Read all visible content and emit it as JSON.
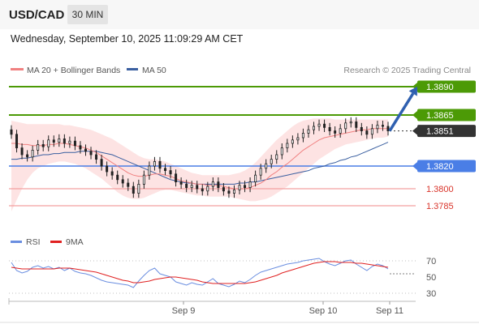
{
  "header": {
    "pair": "USD/CAD",
    "timeframe": "30 MIN"
  },
  "datetime": "Wednesday, September 10, 2025 11:09:29 AM CET",
  "legend": {
    "ma20": "MA 20 + Bollinger Bands",
    "ma50": "MA 50",
    "credit": "Research © 2025 Trading Central",
    "rsi": "RSI",
    "ma9": "9MA"
  },
  "colors": {
    "resistance": "#4c9a06",
    "pivot": "#4a7ee6",
    "support": "#f4a0a0",
    "support_label": "#d9342a",
    "current": "#333333",
    "arrow": "#2f60b0",
    "ma20": "#f08080",
    "ma50": "#3a5fa0",
    "band": "#fde3e3",
    "rsi": "#6a8ee0",
    "rsi_ma": "#e02020"
  },
  "chart_data": [
    {
      "type": "candlestick",
      "title": "USD/CAD 30 MIN",
      "x_tick_labels": [
        "Sep 9",
        "Sep 10",
        "Sep 11"
      ],
      "ylim": [
        1.377,
        1.3895
      ],
      "levels": [
        {
          "value": 1.389,
          "label": "1.3890",
          "kind": "resistance"
        },
        {
          "value": 1.3865,
          "label": "1.3865",
          "kind": "resistance"
        },
        {
          "value": 1.3851,
          "label": "1.3851",
          "kind": "current"
        },
        {
          "value": 1.382,
          "label": "1.3820",
          "kind": "pivot"
        },
        {
          "value": 1.38,
          "label": "1.3800",
          "kind": "support"
        },
        {
          "value": 1.3785,
          "label": "1.3785",
          "kind": "support"
        }
      ],
      "close": [
        1.3848,
        1.3836,
        1.383,
        1.3828,
        1.3834,
        1.3839,
        1.3837,
        1.3843,
        1.3841,
        1.3844,
        1.384,
        1.3842,
        1.3838,
        1.3835,
        1.3833,
        1.383,
        1.3826,
        1.382,
        1.3815,
        1.3812,
        1.3808,
        1.3805,
        1.3802,
        1.3796,
        1.3804,
        1.3812,
        1.382,
        1.3824,
        1.3818,
        1.3816,
        1.3813,
        1.3806,
        1.3804,
        1.3801,
        1.3803,
        1.38,
        1.3798,
        1.3802,
        1.3806,
        1.3801,
        1.3798,
        1.3796,
        1.3799,
        1.3803,
        1.3801,
        1.3806,
        1.3812,
        1.3818,
        1.3822,
        1.3826,
        1.383,
        1.3836,
        1.384,
        1.3843,
        1.3845,
        1.3849,
        1.3852,
        1.3855,
        1.3857,
        1.3854,
        1.3851,
        1.3849,
        1.3853,
        1.3858,
        1.3859,
        1.3854,
        1.3851,
        1.3848,
        1.3853,
        1.3856,
        1.3855,
        1.3851
      ],
      "ma20": [
        1.384,
        1.384,
        1.3839,
        1.3839,
        1.3838,
        1.3838,
        1.3838,
        1.3839,
        1.3839,
        1.384,
        1.384,
        1.3839,
        1.3838,
        1.3837,
        1.3836,
        1.3834,
        1.3832,
        1.3829,
        1.3826,
        1.3823,
        1.382,
        1.3817,
        1.3814,
        1.3812,
        1.3811,
        1.3811,
        1.3812,
        1.3813,
        1.3813,
        1.3812,
        1.3811,
        1.3809,
        1.3807,
        1.3806,
        1.3805,
        1.3804,
        1.3804,
        1.3803,
        1.3803,
        1.3803,
        1.3802,
        1.3801,
        1.38,
        1.38,
        1.38,
        1.3801,
        1.3803,
        1.3805,
        1.3808,
        1.3812,
        1.3815,
        1.3819,
        1.3822,
        1.3826,
        1.383,
        1.3834,
        1.3837,
        1.384,
        1.3843,
        1.3845,
        1.3846,
        1.3847,
        1.3848,
        1.3849,
        1.385,
        1.3851,
        1.3852,
        1.3852,
        1.3853,
        1.3853,
        1.3853,
        1.3853
      ],
      "ma50": [
        1.3826,
        1.3826,
        1.3827,
        1.3827,
        1.3828,
        1.3829,
        1.383,
        1.383,
        1.3831,
        1.3831,
        1.3832,
        1.3832,
        1.3832,
        1.3833,
        1.3833,
        1.3833,
        1.3833,
        1.3832,
        1.3831,
        1.383,
        1.3828,
        1.3826,
        1.3824,
        1.3822,
        1.382,
        1.3818,
        1.3816,
        1.3814,
        1.3812,
        1.381,
        1.3808,
        1.3807,
        1.3806,
        1.3805,
        1.3805,
        1.3804,
        1.3804,
        1.3804,
        1.3804,
        1.3804,
        1.3804,
        1.3804,
        1.3804,
        1.3805,
        1.3805,
        1.3806,
        1.3806,
        1.3807,
        1.3808,
        1.3809,
        1.381,
        1.3811,
        1.3812,
        1.3813,
        1.3814,
        1.3815,
        1.3816,
        1.3818,
        1.3819,
        1.382,
        1.3822,
        1.3823,
        1.3825,
        1.3826,
        1.3828,
        1.3829,
        1.3831,
        1.3833,
        1.3835,
        1.3837,
        1.3839,
        1.3841
      ],
      "bollinger_upper": [
        1.386,
        1.3859,
        1.3858,
        1.3857,
        1.3857,
        1.3857,
        1.3857,
        1.3857,
        1.3857,
        1.3857,
        1.3856,
        1.3856,
        1.3855,
        1.3854,
        1.3853,
        1.3852,
        1.385,
        1.3848,
        1.3846,
        1.3844,
        1.3841,
        1.3838,
        1.3835,
        1.3832,
        1.3829,
        1.3827,
        1.3826,
        1.3826,
        1.3825,
        1.3824,
        1.3822,
        1.382,
        1.3818,
        1.3816,
        1.3814,
        1.3813,
        1.3812,
        1.3812,
        1.3812,
        1.3812,
        1.3812,
        1.3812,
        1.3813,
        1.3814,
        1.3816,
        1.3819,
        1.3823,
        1.3828,
        1.3833,
        1.3838,
        1.3843,
        1.3847,
        1.3851,
        1.3855,
        1.3858,
        1.386,
        1.3861,
        1.3862,
        1.3862,
        1.3862,
        1.3862,
        1.3861,
        1.3861,
        1.3861,
        1.3861,
        1.3861,
        1.3861,
        1.3861,
        1.3861,
        1.3861,
        1.3861,
        1.3861
      ],
      "bollinger_lower": [
        1.378,
        1.379,
        1.38,
        1.3808,
        1.3814,
        1.3818,
        1.382,
        1.3822,
        1.3823,
        1.3824,
        1.3824,
        1.3823,
        1.3822,
        1.382,
        1.3818,
        1.3815,
        1.3812,
        1.3809,
        1.3805,
        1.3801,
        1.3797,
        1.3794,
        1.3792,
        1.3791,
        1.3791,
        1.3792,
        1.3794,
        1.3796,
        1.3798,
        1.3799,
        1.3799,
        1.3798,
        1.3797,
        1.3796,
        1.3795,
        1.3794,
        1.3794,
        1.3793,
        1.3793,
        1.3793,
        1.3793,
        1.3793,
        1.3792,
        1.3791,
        1.379,
        1.3789,
        1.3789,
        1.379,
        1.3791,
        1.3793,
        1.3796,
        1.3799,
        1.3802,
        1.3806,
        1.381,
        1.3814,
        1.3818,
        1.3822,
        1.3826,
        1.3829,
        1.3832,
        1.3835,
        1.3837,
        1.3839,
        1.384,
        1.3841,
        1.3842,
        1.3843,
        1.3844,
        1.3845,
        1.3845,
        1.3846
      ],
      "forecast": {
        "from": 1.3851,
        "to": 1.389
      }
    },
    {
      "type": "line",
      "series": [
        {
          "name": "RSI",
          "values": [
            68,
            58,
            55,
            57,
            62,
            64,
            61,
            63,
            60,
            62,
            58,
            61,
            57,
            55,
            54,
            52,
            49,
            46,
            44,
            43,
            42,
            41,
            40,
            37,
            45,
            52,
            58,
            61,
            54,
            52,
            50,
            44,
            42,
            40,
            43,
            41,
            40,
            44,
            48,
            42,
            40,
            38,
            41,
            45,
            43,
            47,
            52,
            56,
            58,
            60,
            62,
            64,
            66,
            67,
            68,
            70,
            71,
            72,
            73,
            69,
            66,
            64,
            67,
            70,
            71,
            66,
            62,
            58,
            63,
            66,
            64,
            60
          ]
        },
        {
          "name": "9MA",
          "values": [
            62,
            61,
            60,
            60,
            60,
            60,
            60,
            60,
            60,
            61,
            61,
            61,
            60,
            59,
            58,
            57,
            56,
            54,
            52,
            50,
            48,
            46,
            45,
            43,
            43,
            44,
            45,
            47,
            48,
            49,
            50,
            50,
            49,
            48,
            47,
            46,
            44,
            43,
            42,
            42,
            42,
            42,
            42,
            42,
            42,
            43,
            44,
            46,
            48,
            50,
            52,
            55,
            57,
            59,
            61,
            63,
            65,
            67,
            68,
            69,
            69,
            69,
            68,
            68,
            68,
            67,
            67,
            66,
            65,
            64,
            63,
            62
          ]
        }
      ],
      "ylim": [
        20,
        80
      ],
      "y_tick_labels": [
        "70",
        "50",
        "30"
      ]
    }
  ]
}
